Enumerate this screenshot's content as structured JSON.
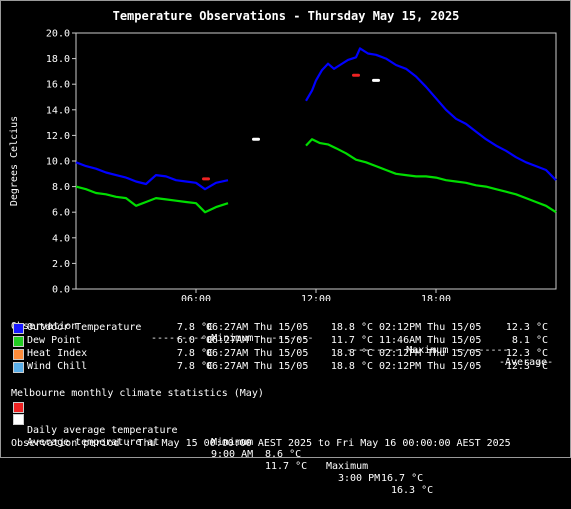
{
  "chart_data": {
    "type": "line",
    "title": "Temperature Observations - Thursday May 15, 2025",
    "ylabel": "Degrees Celcius",
    "xlim": [
      0,
      24
    ],
    "ylim": [
      0,
      20
    ],
    "yticks": [
      0,
      2,
      4,
      6,
      8,
      10,
      12,
      14,
      16,
      18,
      20
    ],
    "ytick_labels": [
      "0.0",
      "2.0",
      "4.0",
      "6.0",
      "8.0",
      "10.0",
      "12.0",
      "14.0",
      "16.0",
      "18.0",
      "20.0"
    ],
    "xticks": [
      6,
      12,
      18
    ],
    "xtick_labels": [
      "06:00",
      "12:00",
      "18:00"
    ],
    "grid": true,
    "series": [
      {
        "name": "Outdoor Temperature",
        "color": "#0000ff",
        "segments": [
          [
            [
              0,
              9.9
            ],
            [
              0.5,
              9.6
            ],
            [
              1,
              9.4
            ],
            [
              1.5,
              9.1
            ],
            [
              2,
              8.9
            ],
            [
              2.5,
              8.7
            ],
            [
              3,
              8.4
            ],
            [
              3.5,
              8.2
            ],
            [
              4,
              8.9
            ],
            [
              4.5,
              8.8
            ],
            [
              5,
              8.5
            ],
            [
              5.5,
              8.4
            ],
            [
              6,
              8.3
            ],
            [
              6.45,
              7.8
            ],
            [
              7,
              8.3
            ],
            [
              7.6,
              8.5
            ]
          ],
          [
            [
              11.5,
              14.7
            ],
            [
              11.8,
              15.5
            ],
            [
              12,
              16.3
            ],
            [
              12.3,
              17.1
            ],
            [
              12.6,
              17.6
            ],
            [
              12.9,
              17.2
            ],
            [
              13.2,
              17.5
            ],
            [
              13.6,
              17.9
            ],
            [
              14,
              18.1
            ],
            [
              14.2,
              18.8
            ],
            [
              14.6,
              18.4
            ],
            [
              15,
              18.3
            ],
            [
              15.5,
              18.0
            ],
            [
              16,
              17.5
            ],
            [
              16.5,
              17.2
            ],
            [
              17,
              16.6
            ],
            [
              17.5,
              15.8
            ],
            [
              18,
              14.9
            ],
            [
              18.5,
              14.0
            ],
            [
              19,
              13.3
            ],
            [
              19.5,
              12.9
            ],
            [
              20,
              12.3
            ],
            [
              20.5,
              11.7
            ],
            [
              21,
              11.2
            ],
            [
              21.5,
              10.8
            ],
            [
              22,
              10.3
            ],
            [
              22.5,
              9.9
            ],
            [
              23,
              9.6
            ],
            [
              23.5,
              9.3
            ],
            [
              24,
              8.5
            ]
          ]
        ]
      },
      {
        "name": "Dew Point",
        "color": "#00dd00",
        "segments": [
          [
            [
              0,
              8.0
            ],
            [
              0.5,
              7.8
            ],
            [
              1,
              7.5
            ],
            [
              1.5,
              7.4
            ],
            [
              2,
              7.2
            ],
            [
              2.5,
              7.1
            ],
            [
              3,
              6.5
            ],
            [
              3.5,
              6.8
            ],
            [
              4,
              7.1
            ],
            [
              4.5,
              7.0
            ],
            [
              5,
              6.9
            ],
            [
              5.5,
              6.8
            ],
            [
              6,
              6.7
            ],
            [
              6.45,
              6.0
            ],
            [
              7,
              6.4
            ],
            [
              7.6,
              6.7
            ]
          ],
          [
            [
              11.5,
              11.2
            ],
            [
              11.8,
              11.7
            ],
            [
              12.2,
              11.4
            ],
            [
              12.6,
              11.3
            ],
            [
              13,
              11.0
            ],
            [
              13.5,
              10.6
            ],
            [
              14,
              10.1
            ],
            [
              14.5,
              9.9
            ],
            [
              15,
              9.6
            ],
            [
              15.5,
              9.3
            ],
            [
              16,
              9.0
            ],
            [
              16.5,
              8.9
            ],
            [
              17,
              8.8
            ],
            [
              17.5,
              8.8
            ],
            [
              18,
              8.7
            ],
            [
              18.5,
              8.5
            ],
            [
              19,
              8.4
            ],
            [
              19.5,
              8.3
            ],
            [
              20,
              8.1
            ],
            [
              20.5,
              8.0
            ],
            [
              21,
              7.8
            ],
            [
              21.5,
              7.6
            ],
            [
              22,
              7.4
            ],
            [
              22.5,
              7.1
            ],
            [
              23,
              6.8
            ],
            [
              23.5,
              6.5
            ],
            [
              24,
              6.0
            ]
          ]
        ]
      }
    ],
    "markers": [
      {
        "name": "Daily average temperature minimum",
        "x": 6.5,
        "y": 8.6,
        "color": "#ee2222"
      },
      {
        "name": "Daily average temperature maximum",
        "x": 14.0,
        "y": 16.7,
        "color": "#ee2222"
      },
      {
        "name": "Average temperature at 9:00 AM",
        "x": 9.0,
        "y": 11.7,
        "color": "#ffffff"
      },
      {
        "name": "Average temperature at 3:00 PM",
        "x": 15.0,
        "y": 16.3,
        "color": "#ffffff"
      }
    ]
  },
  "legend": {
    "header": {
      "observation": "Observation",
      "minimum": "--------- Minimum ---------",
      "maximum": "--------- Maximum ---------",
      "average": "-Average-"
    },
    "rows": [
      {
        "label": "Outdoor Temperature",
        "color": "#1818ff",
        "min": "7.8 °C",
        "min_time": "06:27AM Thu 15/05",
        "max": "18.8 °C",
        "max_time": "02:12PM Thu 15/05",
        "avg": "12.3 °C"
      },
      {
        "label": "Dew Point",
        "color": "#22cc22",
        "min": "6.0 °C",
        "min_time": "06:27AM Thu 15/05",
        "max": "11.7 °C",
        "max_time": "11:46AM Thu 15/05",
        "avg": "8.1 °C"
      },
      {
        "label": "Heat Index",
        "color": "#ff8c3a",
        "min": "7.8 °C",
        "min_time": "06:27AM Thu 15/05",
        "max": "18.8 °C",
        "max_time": "02:12PM Thu 15/05",
        "avg": "12.3 °C"
      },
      {
        "label": "Wind Chill",
        "color": "#5aaee8",
        "min": "7.8 °C",
        "min_time": "06:27AM Thu 15/05",
        "max": "18.8 °C",
        "max_time": "02:12PM Thu 15/05",
        "avg": "12.3 °C"
      }
    ]
  },
  "climate": {
    "heading": "Melbourne monthly climate statistics (May)",
    "daily_avg": {
      "label": "Daily average temperature",
      "color": "#ee2222",
      "min_label": "Minimum",
      "min": "8.6 °C",
      "max_label": "Maximum",
      "max": "16.7 °C"
    },
    "avg_at": {
      "label": "Average temperature at",
      "color": "#ffffff",
      "t1": "9:00 AM",
      "v1": "11.7 °C",
      "t2": "3:00 PM",
      "v2": "16.3 °C"
    }
  },
  "period": "Observation period : Thu May 15 00:00:00 AEST 2025 to Fri May 16 00:00:00 AEST 2025"
}
